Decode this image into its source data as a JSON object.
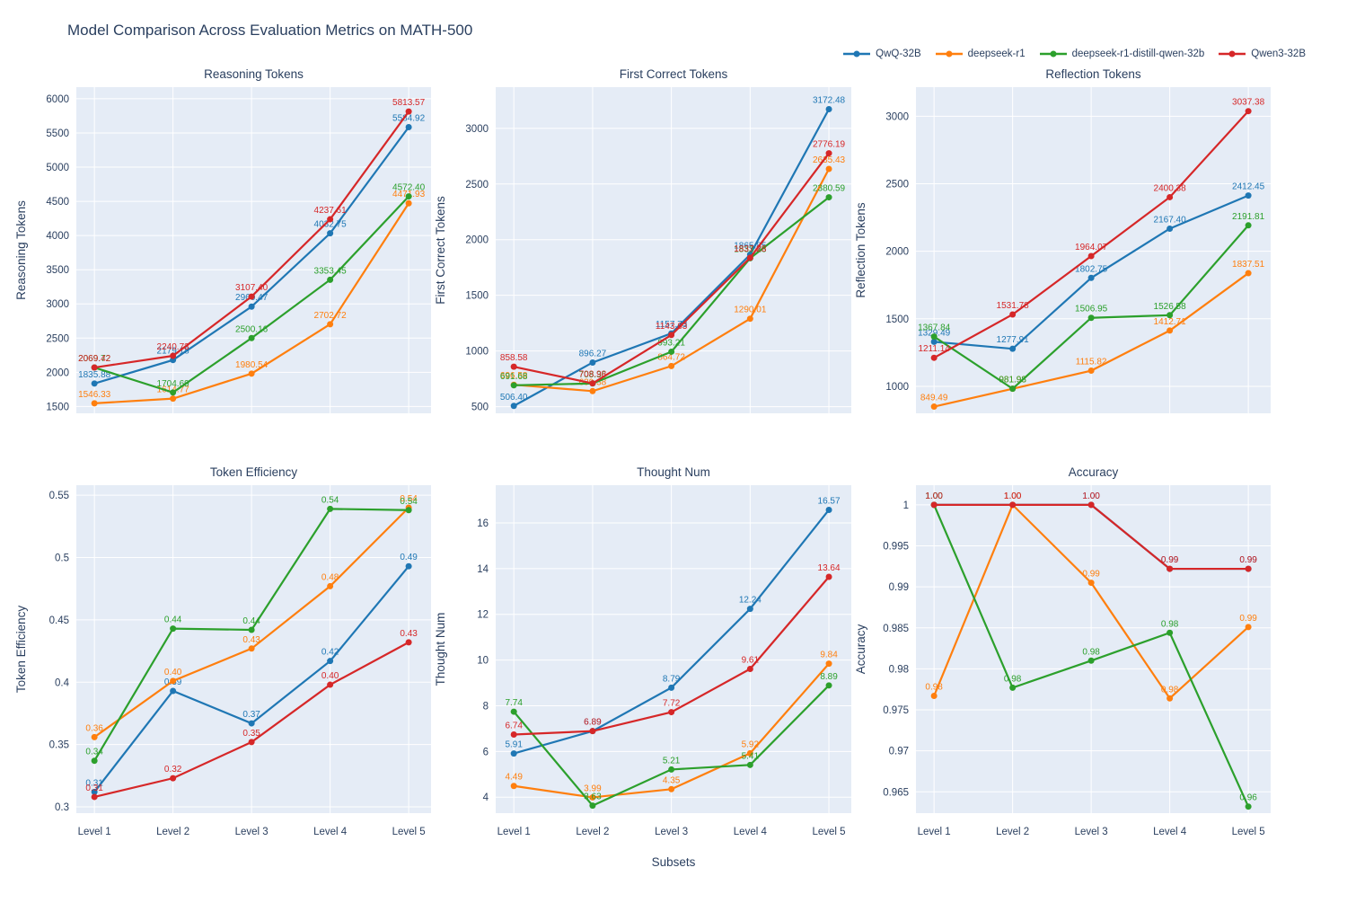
{
  "title": "Model Comparison Across Evaluation Metrics on MATH-500",
  "xlabel": "Subsets",
  "categories": [
    "Level 1",
    "Level 2",
    "Level 3",
    "Level 4",
    "Level 5"
  ],
  "models": [
    {
      "name": "QwQ-32B",
      "color": "#1f77b4"
    },
    {
      "name": "deepseek-r1",
      "color": "#ff7f0e"
    },
    {
      "name": "deepseek-r1-distill-qwen-32b",
      "color": "#2ca02c"
    },
    {
      "name": "Qwen3-32B",
      "color": "#d62728"
    }
  ],
  "style": {
    "plot_bg": "#e5ecf6",
    "grid": "#ffffff",
    "text": "#2a3f5f"
  },
  "chart_data": [
    {
      "type": "line",
      "title": "Reasoning Tokens",
      "ylabel": "Reasoning Tokens",
      "ylim": [
        1400,
        6170
      ],
      "yticks": [
        1500,
        2000,
        2500,
        3000,
        3500,
        4000,
        4500,
        5000,
        5500,
        6000
      ],
      "series": [
        {
          "name": "QwQ-32B",
          "values": [
            1835.88,
            2179.18,
            2960.47,
            4032.75,
            5584.92
          ]
        },
        {
          "name": "deepseek-r1",
          "values": [
            1546.33,
            1614.77,
            1980.54,
            2702.72,
            4471.93
          ]
        },
        {
          "name": "deepseek-r1-distill-qwen-32b",
          "values": [
            2069.72,
            1704.69,
            2500.16,
            3353.45,
            4572.4
          ]
        },
        {
          "name": "Qwen3-32B",
          "values": [
            2069.42,
            2240.73,
            3107.4,
            4237.61,
            5813.57
          ]
        }
      ]
    },
    {
      "type": "line",
      "title": "First Correct Tokens",
      "ylabel": "First Correct Tokens",
      "ylim": [
        440,
        3370
      ],
      "yticks": [
        500,
        1000,
        1500,
        2000,
        2500,
        3000
      ],
      "series": [
        {
          "name": "QwQ-32B",
          "values": [
            506.4,
            896.27,
            1157.73,
            1865.85,
            3172.48
          ]
        },
        {
          "name": "deepseek-r1",
          "values": [
            696.58,
            639.38,
            864.72,
            1290.01,
            2635.43
          ]
        },
        {
          "name": "deepseek-r1-distill-qwen-32b",
          "values": [
            691.68,
            708.36,
            993.21,
            1833.23,
            2380.59
          ]
        },
        {
          "name": "Qwen3-32B",
          "values": [
            858.58,
            708.98,
            1143.63,
            1837.28,
            2776.19
          ]
        }
      ]
    },
    {
      "type": "line",
      "title": "Reflection Tokens",
      "ylabel": "Reflection Tokens",
      "ylim": [
        800,
        3215
      ],
      "yticks": [
        1000,
        1500,
        2000,
        2500,
        3000
      ],
      "series": [
        {
          "name": "QwQ-32B",
          "values": [
            1329.49,
            1277.91,
            1802.75,
            2167.4,
            2412.45
          ]
        },
        {
          "name": "deepseek-r1",
          "values": [
            849.49,
            981.93,
            1115.82,
            1412.71,
            1837.51
          ]
        },
        {
          "name": "deepseek-r1-distill-qwen-32b",
          "values": [
            1367.84,
            981.98,
            1506.95,
            1526.58,
            2191.81
          ]
        },
        {
          "name": "Qwen3-32B",
          "values": [
            1211.14,
            1531.78,
            1964.07,
            2400.38,
            3037.38
          ]
        }
      ]
    },
    {
      "type": "line",
      "title": "Token Efficiency",
      "ylabel": "Token Efficiency",
      "ylim": [
        0.295,
        0.558
      ],
      "yticks": [
        0.3,
        0.35,
        0.4,
        0.45,
        0.5,
        0.55
      ],
      "series": [
        {
          "name": "QwQ-32B",
          "values": [
            0.31,
            0.39,
            0.37,
            0.42,
            0.49
          ],
          "plot_y": [
            0.312,
            0.393,
            0.367,
            0.417,
            0.493
          ]
        },
        {
          "name": "deepseek-r1",
          "values": [
            0.36,
            0.4,
            0.43,
            0.48,
            0.54
          ],
          "plot_y": [
            0.356,
            0.401,
            0.427,
            0.477,
            0.54
          ]
        },
        {
          "name": "deepseek-r1-distill-qwen-32b",
          "values": [
            0.34,
            0.44,
            0.44,
            0.54,
            0.54
          ],
          "plot_y": [
            0.337,
            0.443,
            0.442,
            0.539,
            0.538
          ]
        },
        {
          "name": "Qwen3-32B",
          "values": [
            0.31,
            0.32,
            0.35,
            0.4,
            0.43
          ],
          "plot_y": [
            0.308,
            0.323,
            0.352,
            0.398,
            0.432
          ]
        }
      ]
    },
    {
      "type": "line",
      "title": "Thought Num",
      "ylabel": "Thought Num",
      "ylim": [
        3.3,
        17.65
      ],
      "yticks": [
        4,
        6,
        8,
        10,
        12,
        14,
        16
      ],
      "series": [
        {
          "name": "QwQ-32B",
          "values": [
            5.91,
            6.89,
            8.79,
            12.24,
            16.57
          ]
        },
        {
          "name": "deepseek-r1",
          "values": [
            4.49,
            3.99,
            4.35,
            5.92,
            9.84
          ]
        },
        {
          "name": "deepseek-r1-distill-qwen-32b",
          "values": [
            7.74,
            3.63,
            5.21,
            5.41,
            8.89
          ]
        },
        {
          "name": "Qwen3-32B",
          "values": [
            6.74,
            6.89,
            7.72,
            9.61,
            13.64
          ]
        }
      ]
    },
    {
      "type": "line",
      "title": "Accuracy",
      "ylabel": "Accuracy",
      "ylim": [
        0.9624,
        1.0024
      ],
      "yticks": [
        0.965,
        0.97,
        0.975,
        0.98,
        0.985,
        0.99,
        0.995,
        1
      ],
      "series": [
        {
          "name": "QwQ-32B",
          "values": [
            1.0,
            1.0,
            1.0,
            0.99,
            0.99
          ],
          "plot_y": [
            1.0,
            1.0,
            1.0,
            0.9922,
            0.9922
          ]
        },
        {
          "name": "deepseek-r1",
          "values": [
            0.98,
            1.0,
            0.99,
            0.98,
            0.99
          ],
          "plot_y": [
            0.9767,
            1.0,
            0.9905,
            0.9764,
            0.9851
          ]
        },
        {
          "name": "deepseek-r1-distill-qwen-32b",
          "values": [
            1.0,
            0.98,
            0.98,
            0.98,
            0.96
          ],
          "plot_y": [
            1.0,
            0.9777,
            0.981,
            0.9844,
            0.9632
          ]
        },
        {
          "name": "Qwen3-32B",
          "values": [
            1.0,
            1.0,
            1.0,
            0.99,
            0.99
          ],
          "plot_y": [
            1.0,
            1.0,
            1.0,
            0.9922,
            0.9922
          ]
        }
      ]
    }
  ]
}
